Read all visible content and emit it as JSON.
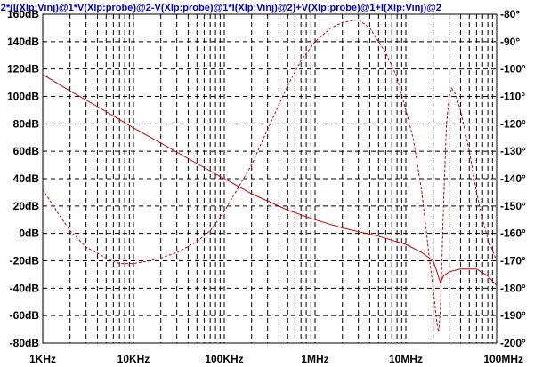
{
  "chart_data": {
    "type": "line",
    "title": "/(2*(I(Xlp:Vinj)@1*V(Xlp:probe)@2-V(Xlp:probe)@1*I(Xlp:Vinj)@2)+V(Xlp:probe)@1+I(Xlp:Vinj)@2",
    "x_scale": "log",
    "x_ticks": [
      {
        "value": 1000,
        "label": "1KHz"
      },
      {
        "value": 10000,
        "label": "10KHz"
      },
      {
        "value": 100000,
        "label": "100KHz"
      },
      {
        "value": 1000000,
        "label": "1MHz"
      },
      {
        "value": 10000000,
        "label": "10MHz"
      },
      {
        "value": 100000000,
        "label": "100MHz"
      }
    ],
    "xlim": [
      1000,
      100000000
    ],
    "y_left": {
      "unit": "dB",
      "ylim": [
        -80,
        160
      ],
      "ticks": [
        {
          "value": 160,
          "label": "160dB"
        },
        {
          "value": 140,
          "label": "140dB"
        },
        {
          "value": 120,
          "label": "120dB"
        },
        {
          "value": 100,
          "label": "100dB"
        },
        {
          "value": 80,
          "label": "80dB"
        },
        {
          "value": 60,
          "label": "60dB"
        },
        {
          "value": 40,
          "label": "40dB"
        },
        {
          "value": 20,
          "label": "20dB"
        },
        {
          "value": 0,
          "label": "0dB"
        },
        {
          "value": -20,
          "label": "-20dB"
        },
        {
          "value": -40,
          "label": "-40dB"
        },
        {
          "value": -60,
          "label": "-60dB"
        },
        {
          "value": -80,
          "label": "-80dB"
        }
      ]
    },
    "y_right": {
      "unit": "°",
      "ylim": [
        -200,
        -80
      ],
      "ticks": [
        {
          "value": -80,
          "label": "-80°"
        },
        {
          "value": -90,
          "label": "-90°"
        },
        {
          "value": -100,
          "label": "-100°"
        },
        {
          "value": -110,
          "label": "-110°"
        },
        {
          "value": -120,
          "label": "-120°"
        },
        {
          "value": -130,
          "label": "-130°"
        },
        {
          "value": -140,
          "label": "-140°"
        },
        {
          "value": -150,
          "label": "-150°"
        },
        {
          "value": -160,
          "label": "-160°"
        },
        {
          "value": -170,
          "label": "-170°"
        },
        {
          "value": -180,
          "label": "-180°"
        },
        {
          "value": -190,
          "label": "-190°"
        },
        {
          "value": -200,
          "label": "-200°"
        }
      ]
    },
    "grid": true,
    "series": [
      {
        "axis": "left",
        "style": "solid",
        "color": "#cc0000",
        "points": [
          [
            1000,
            116
          ],
          [
            2000,
            104
          ],
          [
            5000,
            89
          ],
          [
            10000,
            77
          ],
          [
            20000,
            66
          ],
          [
            50000,
            51
          ],
          [
            100000,
            40
          ],
          [
            200000,
            29
          ],
          [
            500000,
            17
          ],
          [
            1000000,
            10
          ],
          [
            2000000,
            4
          ],
          [
            5000000,
            -2
          ],
          [
            10000000,
            -8
          ],
          [
            15000000,
            -14
          ],
          [
            20000000,
            -20
          ],
          [
            22000000,
            -28
          ],
          [
            24000000,
            -36
          ],
          [
            26000000,
            -31
          ],
          [
            30000000,
            -28
          ],
          [
            40000000,
            -26
          ],
          [
            60000000,
            -26
          ],
          [
            80000000,
            -31
          ],
          [
            100000000,
            -38
          ]
        ]
      },
      {
        "axis": "right",
        "style": "dashed",
        "color": "#cc0000",
        "points": [
          [
            1000,
            -144
          ],
          [
            1500,
            -153
          ],
          [
            2000,
            -159
          ],
          [
            3000,
            -165
          ],
          [
            5000,
            -169
          ],
          [
            7000,
            -171
          ],
          [
            10000,
            -171
          ],
          [
            15000,
            -170
          ],
          [
            20000,
            -169
          ],
          [
            30000,
            -167
          ],
          [
            50000,
            -163
          ],
          [
            70000,
            -159
          ],
          [
            100000,
            -152
          ],
          [
            150000,
            -142
          ],
          [
            200000,
            -135
          ],
          [
            300000,
            -122
          ],
          [
            500000,
            -106
          ],
          [
            700000,
            -97
          ],
          [
            1000000,
            -90
          ],
          [
            1500000,
            -85
          ],
          [
            2000000,
            -83
          ],
          [
            3000000,
            -82
          ],
          [
            4000000,
            -85
          ],
          [
            6000000,
            -94
          ],
          [
            8000000,
            -103
          ],
          [
            10000000,
            -115
          ],
          [
            12000000,
            -125
          ],
          [
            15000000,
            -145
          ],
          [
            18000000,
            -168
          ],
          [
            20000000,
            -180
          ],
          [
            22000000,
            -193
          ],
          [
            23000000,
            -196
          ],
          [
            24000000,
            -188
          ],
          [
            26000000,
            -150
          ],
          [
            28000000,
            -120
          ],
          [
            30000000,
            -110
          ],
          [
            32000000,
            -107
          ],
          [
            35000000,
            -109
          ],
          [
            40000000,
            -115
          ],
          [
            50000000,
            -130
          ],
          [
            60000000,
            -145
          ],
          [
            70000000,
            -155
          ],
          [
            80000000,
            -162
          ],
          [
            100000000,
            -170
          ]
        ]
      }
    ]
  }
}
